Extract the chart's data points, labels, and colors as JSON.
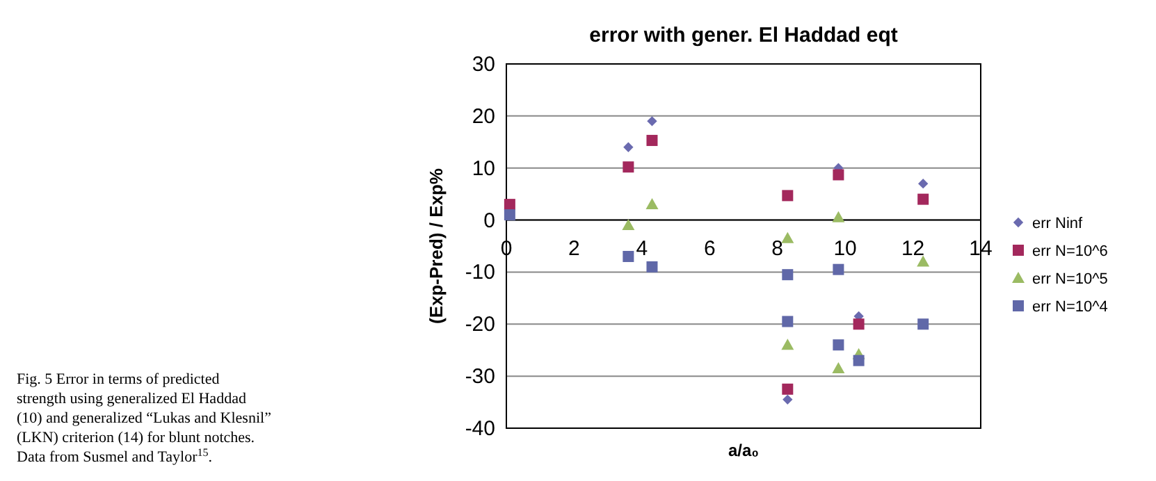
{
  "chart_data": {
    "type": "scatter",
    "title": "error with gener. El Haddad eqt",
    "xlabel": "a/a₀",
    "ylabel": "(Exp-Pred) / Exp%",
    "xlim": [
      0,
      14
    ],
    "xticks": [
      0,
      2,
      4,
      6,
      8,
      10,
      12,
      14
    ],
    "ylim": [
      -40,
      30
    ],
    "yticks": [
      -40,
      -30,
      -20,
      -10,
      0,
      10,
      20,
      30
    ],
    "grid": "y",
    "legend": "right",
    "series": [
      {
        "name": "err Ninf",
        "color": "#6a6aaf",
        "marker": "diamond",
        "x": [
          3.6,
          4.3,
          8.3,
          9.8,
          10.4,
          12.3
        ],
        "values": [
          14,
          19,
          -34.5,
          10,
          -18.5,
          7
        ]
      },
      {
        "name": "err N=10^6",
        "color": "#a3285c",
        "marker": "square",
        "x": [
          0.1,
          3.6,
          4.3,
          8.3,
          8.3,
          9.8,
          10.4,
          12.3
        ],
        "values": [
          3,
          10.2,
          15.3,
          4.7,
          -32.5,
          8.7,
          -20,
          4
        ]
      },
      {
        "name": "err N=10^5",
        "color": "#9bbb63",
        "marker": "triangle",
        "x": [
          3.6,
          4.3,
          8.3,
          8.3,
          9.8,
          9.8,
          10.4,
          12.3
        ],
        "values": [
          -1,
          3,
          -3.5,
          -24,
          0.5,
          -28.5,
          -25.8,
          -8
        ]
      },
      {
        "name": "err N=10^4",
        "color": "#6068a8",
        "marker": "square",
        "x": [
          0.1,
          3.6,
          4.3,
          8.3,
          8.3,
          9.8,
          9.8,
          10.4,
          12.3
        ],
        "values": [
          1,
          -7,
          -9,
          -10.5,
          -19.5,
          -9.5,
          -24,
          -27,
          -20
        ]
      }
    ],
    "annotations": [
      "Fig. 5 Error in terms of predicted strength using generalized El Haddad (10) and generalized “Lukas and Klesnil” (LKN) criterion (14) for blunt notches. Data from Susmel and Taylor$^{15}$."
    ]
  }
}
